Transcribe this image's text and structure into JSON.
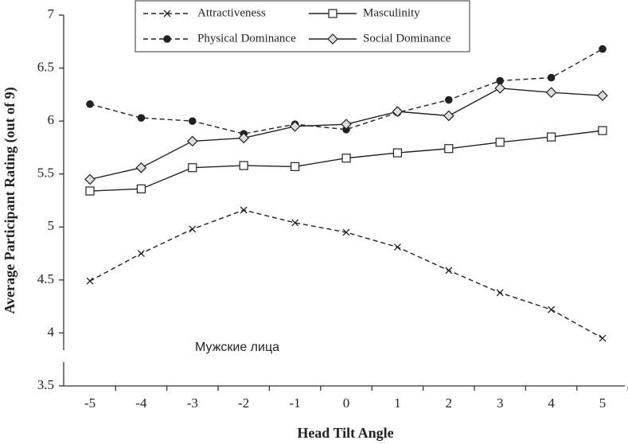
{
  "chart_data": {
    "type": "line",
    "xlabel": "Head Tilt Angle",
    "ylabel": "Average Participant Rating (out of 9)",
    "annotation": "Мужские лица",
    "categories": [
      "-5",
      "-4",
      "-3",
      "-2",
      "-1",
      "0",
      "1",
      "2",
      "3",
      "4",
      "5"
    ],
    "ylim": [
      3.5,
      7
    ],
    "yticks": [
      3.5,
      4,
      4.5,
      5,
      5.5,
      6,
      6.5,
      7
    ],
    "legend": "top",
    "series": [
      {
        "name": "Attractiveness",
        "color": "#222222",
        "marker": "x",
        "dashed": true,
        "values": [
          4.49,
          4.75,
          4.98,
          5.16,
          5.04,
          4.95,
          4.81,
          4.59,
          4.38,
          4.22,
          3.95
        ]
      },
      {
        "name": "Masculinity",
        "color": "#222222",
        "marker": "square",
        "dashed": false,
        "values": [
          5.34,
          5.36,
          5.56,
          5.58,
          5.57,
          5.65,
          5.7,
          5.74,
          5.8,
          5.85,
          5.91
        ]
      },
      {
        "name": "Physical Dominance",
        "color": "#222222",
        "marker": "circle",
        "dashed": true,
        "values": [
          6.16,
          6.03,
          6.0,
          5.88,
          5.97,
          5.92,
          6.08,
          6.2,
          6.38,
          6.41,
          6.68
        ]
      },
      {
        "name": "Social Dominance",
        "color": "#222222",
        "marker": "diamond",
        "dashed": false,
        "values": [
          5.45,
          5.56,
          5.81,
          5.84,
          5.95,
          5.97,
          6.09,
          6.05,
          6.31,
          6.27,
          6.24
        ]
      }
    ]
  }
}
